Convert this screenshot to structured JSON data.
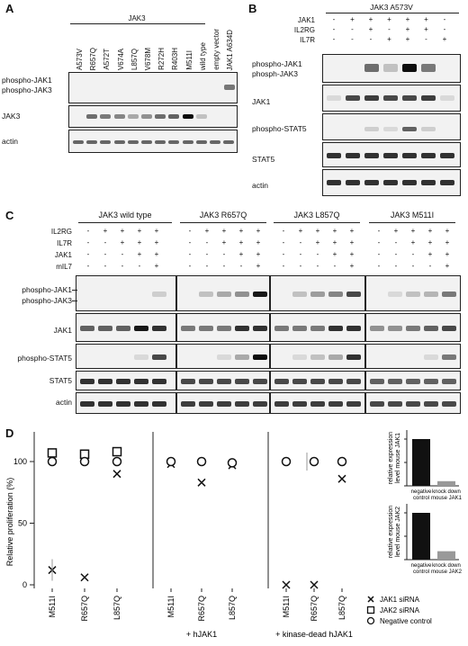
{
  "panelA": {
    "letter": "A",
    "group_title": "JAK3",
    "lanes": [
      "A573V",
      "R657Q",
      "A572T",
      "V674A",
      "L857Q",
      "V678M",
      "R272H",
      "R403H",
      "M511I",
      "wild type",
      "empty vector",
      "JAK1 A634D"
    ],
    "row_labels": [
      "phospho-JAK1",
      "phospho-JAK3",
      "JAK3",
      "actin"
    ]
  },
  "panelB": {
    "letter": "B",
    "group_title": "JAK3 A573V",
    "conditions": [
      {
        "name": "JAK1",
        "signs": [
          "-",
          "+",
          "+",
          "+",
          "+",
          "+",
          "-"
        ]
      },
      {
        "name": "IL2RG",
        "signs": [
          "-",
          "-",
          "+",
          "-",
          "+",
          "+",
          "-"
        ]
      },
      {
        "name": "IL7R",
        "signs": [
          "-",
          "-",
          "-",
          "+",
          "+",
          "-",
          "+"
        ]
      }
    ],
    "row_labels": [
      "phospho-JAK1",
      "phosph-JAK3",
      "JAK1",
      "phospho-STAT5",
      "STAT5",
      "actin"
    ]
  },
  "panelC": {
    "letter": "C",
    "groups": [
      "JAK3 wild type",
      "JAK3 R657Q",
      "JAK3 L857Q",
      "JAK3 M511I"
    ],
    "conditions": [
      {
        "name": "IL2RG",
        "signs": [
          "-",
          "+",
          "+",
          "+",
          "+"
        ]
      },
      {
        "name": "IL7R",
        "signs": [
          "-",
          "-",
          "+",
          "+",
          "+"
        ]
      },
      {
        "name": "JAK1",
        "signs": [
          "-",
          "-",
          "-",
          "+",
          "+"
        ]
      },
      {
        "name": "mIL7",
        "signs": [
          "-",
          "-",
          "-",
          "-",
          "+"
        ]
      }
    ],
    "row_labels": [
      "phospho-JAK1",
      "phospho-JAK3",
      "JAK1",
      "phospho-STAT5",
      "STAT5",
      "actin"
    ]
  },
  "panelD": {
    "letter": "D",
    "ylabel": "Relative proliferation (%)",
    "yticks": [
      "0",
      "50",
      "100"
    ],
    "groups": [
      {
        "title": "",
        "xticks": [
          "M511I",
          "R657Q",
          "L857Q"
        ]
      },
      {
        "title": "+ hJAK1",
        "xticks": [
          "M511I",
          "R657Q",
          "L857Q"
        ]
      },
      {
        "title": "+ kinase-dead hJAK1",
        "xticks": [
          "M511I",
          "R657Q",
          "L857Q"
        ]
      }
    ],
    "legend": [
      {
        "symbol": "cross",
        "label": "JAK1 siRNA"
      },
      {
        "symbol": "square",
        "label": "JAK2 siRNA"
      },
      {
        "symbol": "circle",
        "label": "Negative control"
      }
    ],
    "insets": [
      {
        "ylabel": "relative expression level mouse JAK1",
        "categories": [
          "negative control",
          "knock down mouse JAK1"
        ],
        "values": [
          1.0,
          0.1
        ]
      },
      {
        "ylabel": "relative expression level mouse JAK2",
        "categories": [
          "negative control",
          "knock down mouse JAK2"
        ],
        "values": [
          1.0,
          0.18
        ]
      }
    ]
  },
  "chart_data": {
    "type": "scatter",
    "ylabel": "Relative proliferation (%)",
    "ylim": [
      0,
      110
    ],
    "x": [
      "M511I",
      "R657Q",
      "L857Q"
    ],
    "panels": [
      {
        "title": "",
        "series": [
          {
            "name": "JAK1 siRNA",
            "values": [
              12,
              6,
              90
            ]
          },
          {
            "name": "JAK2 siRNA",
            "values": [
              107,
              106,
              108
            ]
          },
          {
            "name": "Negative control",
            "values": [
              100,
              100,
              100
            ]
          }
        ]
      },
      {
        "title": "+ hJAK1",
        "series": [
          {
            "name": "JAK1 siRNA",
            "values": [
              98,
              83,
              97
            ]
          },
          {
            "name": "Negative control",
            "values": [
              100,
              100,
              99
            ]
          }
        ]
      },
      {
        "title": "+ kinase-dead hJAK1",
        "series": [
          {
            "name": "JAK1 siRNA",
            "values": [
              0,
              0,
              86
            ]
          },
          {
            "name": "Negative control",
            "values": [
              100,
              100,
              100
            ]
          }
        ]
      }
    ],
    "colors": {
      "bar_control": "#111111",
      "bar_knockdown": "#999999"
    }
  }
}
